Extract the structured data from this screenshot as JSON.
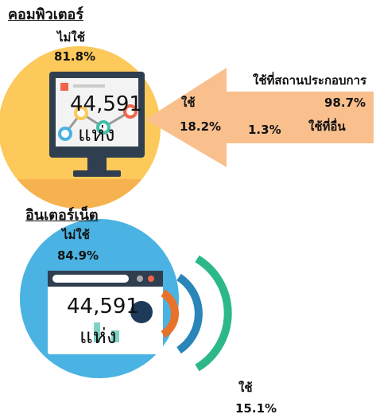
{
  "computer": {
    "title": "คอมพิวเตอร์",
    "not_use_label": "ไม่ใช้",
    "not_use_pct": "81.8%",
    "total": "44,591",
    "unit": "แห่ง",
    "use_label": "ใช้",
    "use_pct": "18.2%",
    "at_business_label": "ใช้ที่สถานประกอบการ",
    "at_business_pct": "98.7%",
    "elsewhere_pct": "1.3%",
    "elsewhere_label": "ใช้ที่อื่น"
  },
  "internet": {
    "title": "อินเตอร์เน็ต",
    "not_use_label": "ไม่ใช้",
    "not_use_pct": "84.9%",
    "total": "44,591",
    "unit": "แห่ง",
    "use_label": "ใช้",
    "use_pct": "15.1%"
  }
}
